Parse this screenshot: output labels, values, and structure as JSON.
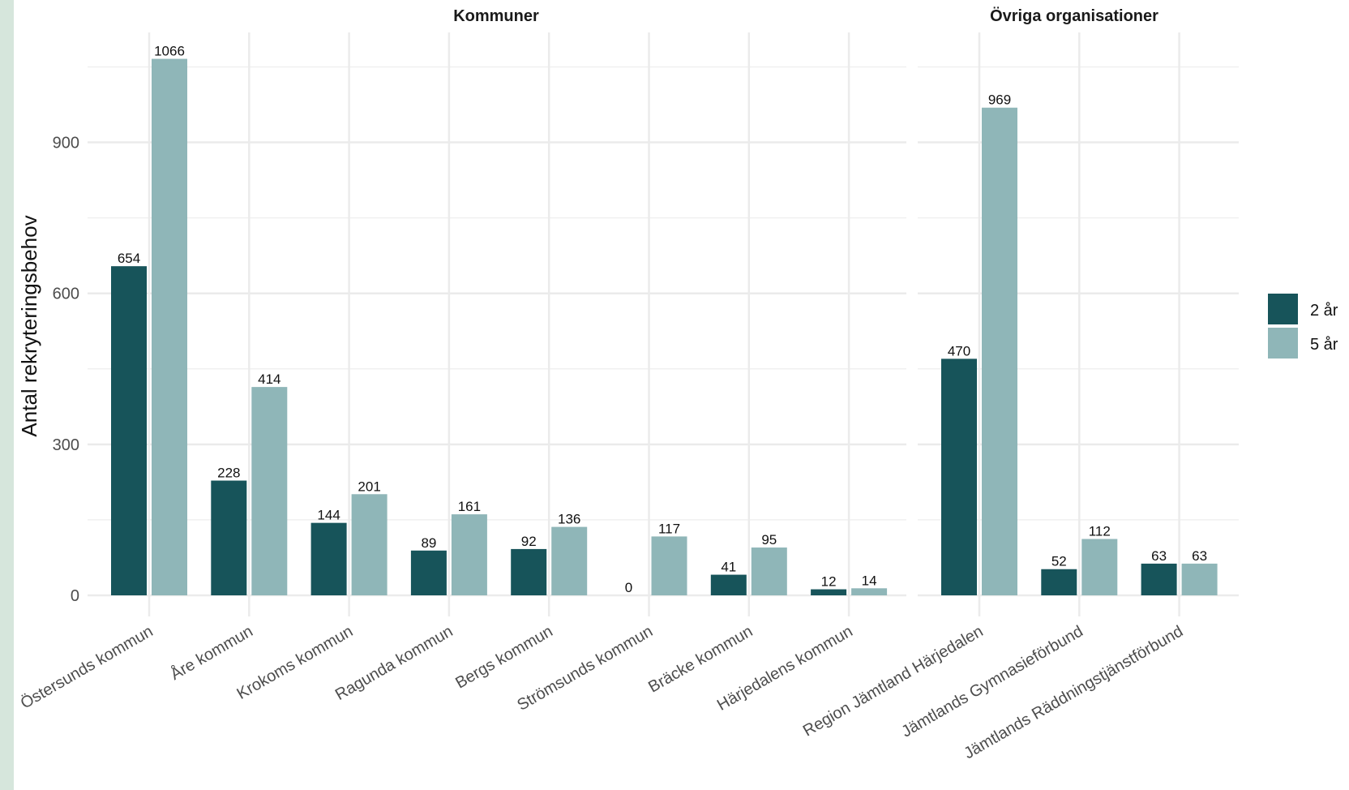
{
  "chart_data": {
    "type": "bar",
    "ylabel": "Antal rekryteringsbehov",
    "yticks": [
      0,
      300,
      600,
      900
    ],
    "ylim": [
      0,
      1110
    ],
    "grid": true,
    "legend_position": "right",
    "series": [
      {
        "name": "2 år",
        "color": "#17545a"
      },
      {
        "name": "5 år",
        "color": "#8fb6b8"
      }
    ],
    "facets": [
      {
        "title": "Kommuner",
        "categories": [
          "Östersunds kommun",
          "Åre kommun",
          "Krokoms kommun",
          "Ragunda kommun",
          "Bergs kommun",
          "Strömsunds kommun",
          "Bräcke kommun",
          "Härjedalens kommun"
        ],
        "values": [
          [
            654,
            228,
            144,
            89,
            92,
            0,
            41,
            12
          ],
          [
            1066,
            414,
            201,
            161,
            136,
            117,
            95,
            14
          ]
        ]
      },
      {
        "title": "Övriga organisationer",
        "categories": [
          "Region Jämtland Härjedalen",
          "Jämtlands Gymnasieförbund",
          "Jämtlands Räddningstjänstförbund"
        ],
        "values": [
          [
            470,
            52,
            63
          ],
          [
            969,
            112,
            63
          ]
        ]
      }
    ]
  }
}
